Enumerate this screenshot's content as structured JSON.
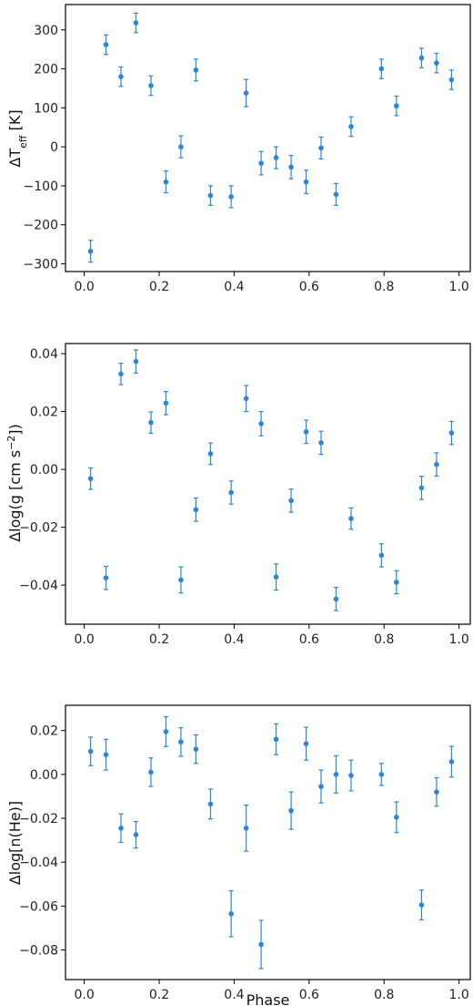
{
  "chart_data": [
    {
      "type": "scatter",
      "title": "",
      "xlabel": "",
      "ylabel": "ΔT",
      "ylabel_sub": "eff",
      "ylabel_suffix": " [K]",
      "xlim": [
        -0.05,
        1.03
      ],
      "ylim": [
        -320,
        365
      ],
      "xticks": [
        0.0,
        0.2,
        0.4,
        0.6,
        0.8,
        1.0
      ],
      "xtick_labels": [
        "0.0",
        "0.2",
        "0.4",
        "0.6",
        "0.8",
        "1.0"
      ],
      "yticks": [
        -300,
        -200,
        -100,
        0,
        100,
        200,
        300
      ],
      "ytick_labels": [
        "−300",
        "−200",
        "−100",
        "0",
        "100",
        "200",
        "300"
      ],
      "series": [
        {
          "color": "#2b86d9",
          "x": [
            0.017,
            0.058,
            0.098,
            0.138,
            0.178,
            0.218,
            0.258,
            0.298,
            0.337,
            0.392,
            0.432,
            0.472,
            0.512,
            0.552,
            0.592,
            0.632,
            0.672,
            0.712,
            0.793,
            0.833,
            0.9,
            0.94,
            0.98
          ],
          "y": [
            -268,
            262,
            180,
            318,
            157,
            -90,
            0,
            197,
            -125,
            -128,
            138,
            -42,
            -28,
            -52,
            -90,
            -3,
            -122,
            52,
            200,
            105,
            228,
            215,
            172
          ],
          "err": [
            28,
            25,
            25,
            25,
            25,
            28,
            28,
            28,
            25,
            28,
            35,
            30,
            28,
            30,
            30,
            28,
            28,
            25,
            25,
            25,
            25,
            25,
            25
          ]
        }
      ]
    },
    {
      "type": "scatter",
      "title": "",
      "xlabel": "",
      "ylabel": "Δlog(g [cm s",
      "ylabel_sup": "−2",
      "ylabel_suffix": "])",
      "xlim": [
        -0.05,
        1.03
      ],
      "ylim": [
        -0.0535,
        0.0435
      ],
      "xticks": [
        0.0,
        0.2,
        0.4,
        0.6,
        0.8,
        1.0
      ],
      "xtick_labels": [
        "0.0",
        "0.2",
        "0.4",
        "0.6",
        "0.8",
        "1.0"
      ],
      "yticks": [
        -0.04,
        -0.02,
        0.0,
        0.02,
        0.04
      ],
      "ytick_labels": [
        "−0.04",
        "−0.02",
        "0.00",
        "0.02",
        "0.04"
      ],
      "series": [
        {
          "color": "#2b86d9",
          "x": [
            0.017,
            0.058,
            0.098,
            0.138,
            0.178,
            0.218,
            0.258,
            0.298,
            0.337,
            0.392,
            0.432,
            0.472,
            0.512,
            0.552,
            0.592,
            0.632,
            0.672,
            0.712,
            0.793,
            0.833,
            0.9,
            0.94,
            0.98
          ],
          "y": [
            -0.0032,
            -0.0375,
            0.033,
            0.0373,
            0.0162,
            0.0229,
            -0.0382,
            -0.0139,
            0.0054,
            -0.008,
            0.0245,
            0.0158,
            -0.0372,
            -0.0108,
            0.013,
            0.0092,
            -0.0448,
            -0.017,
            -0.0297,
            -0.039,
            -0.0064,
            0.0017,
            0.0126
          ],
          "err": [
            0.0037,
            0.004,
            0.0037,
            0.004,
            0.0037,
            0.004,
            0.0045,
            0.004,
            0.0037,
            0.004,
            0.0045,
            0.0042,
            0.0045,
            0.004,
            0.004,
            0.004,
            0.004,
            0.0037,
            0.004,
            0.004,
            0.004,
            0.004,
            0.004
          ]
        }
      ]
    },
    {
      "type": "scatter",
      "title": "",
      "xlabel": "Phase",
      "ylabel": "Δlog[n(He)]",
      "xlim": [
        -0.05,
        1.03
      ],
      "ylim": [
        -0.0935,
        0.0315
      ],
      "xticks": [
        0.0,
        0.2,
        0.4,
        0.6,
        0.8,
        1.0
      ],
      "xtick_labels": [
        "0.0",
        "0.2",
        "0.4",
        "0.6",
        "0.8",
        "1.0"
      ],
      "yticks": [
        -0.08,
        -0.06,
        -0.04,
        -0.02,
        0.0,
        0.02
      ],
      "ytick_labels": [
        "−0.08",
        "−0.06",
        "−0.04",
        "−0.02",
        "0.00",
        "0.02"
      ],
      "series": [
        {
          "color": "#2b86d9",
          "x": [
            0.017,
            0.058,
            0.098,
            0.138,
            0.178,
            0.218,
            0.258,
            0.298,
            0.337,
            0.392,
            0.432,
            0.472,
            0.512,
            0.552,
            0.592,
            0.632,
            0.672,
            0.712,
            0.793,
            0.833,
            0.9,
            0.94,
            0.98
          ],
          "y": [
            0.0105,
            0.009,
            -0.0245,
            -0.0275,
            0.001,
            0.0195,
            0.0148,
            0.0115,
            -0.0135,
            -0.0635,
            -0.0245,
            -0.0775,
            0.016,
            -0.0165,
            0.014,
            -0.0055,
            0.0,
            -0.0005,
            0.0,
            -0.0195,
            -0.0595,
            -0.008,
            0.0058
          ],
          "err": [
            0.0065,
            0.007,
            0.0065,
            0.006,
            0.0065,
            0.0068,
            0.0065,
            0.0065,
            0.0068,
            0.0105,
            0.0105,
            0.011,
            0.007,
            0.0085,
            0.0075,
            0.0075,
            0.0085,
            0.007,
            0.005,
            0.007,
            0.0068,
            0.0065,
            0.007
          ]
        }
      ]
    }
  ]
}
